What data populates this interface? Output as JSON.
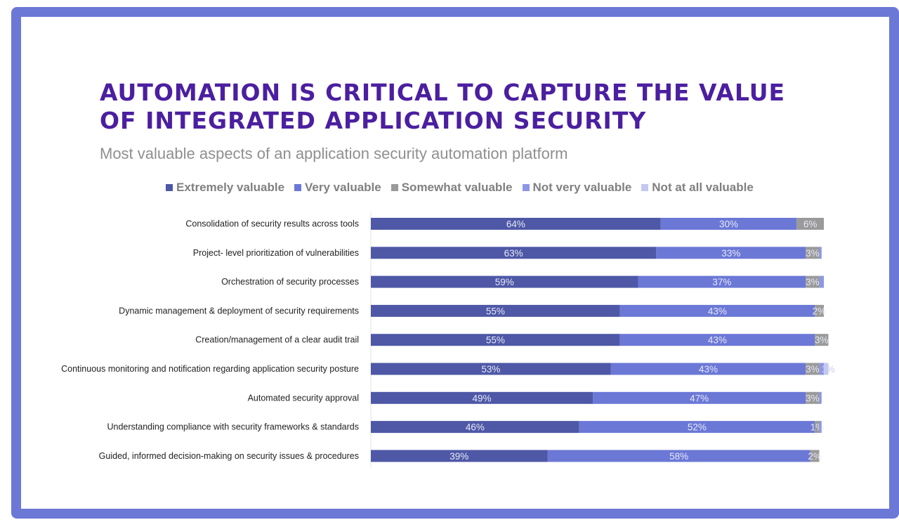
{
  "chart_data": {
    "type": "bar",
    "orientation": "horizontal-stacked",
    "title_lines": [
      "AUTOMATION IS CRITICAL TO CAPTURE THE VALUE",
      "OF INTEGRATED APPLICATION SECURITY"
    ],
    "subtitle": "Most valuable aspects of an application security automation platform",
    "legend_position": "top",
    "xlim": [
      0,
      100
    ],
    "categories": [
      "Consolidation of security results across tools",
      "Project- level prioritization of vulnerabilities",
      "Orchestration of security processes",
      "Dynamic management & deployment of security requirements",
      "Creation/management of a clear audit trail",
      "Continuous monitoring and notification regarding application security posture",
      "Automated security approval",
      "Understanding compliance with security frameworks & standards",
      "Guided, informed decision-making on security issues & procedures"
    ],
    "series": [
      {
        "name": "Extremely valuable",
        "color": "#4e58a6",
        "values": [
          64,
          63,
          59,
          55,
          55,
          53,
          49,
          46,
          39
        ],
        "labels": [
          "64%",
          "63%",
          "59%",
          "55%",
          "55%",
          "53%",
          "49%",
          "46%",
          "39%"
        ]
      },
      {
        "name": "Very valuable",
        "color": "#6b78d6",
        "values": [
          30,
          33,
          37,
          43,
          43,
          43,
          47,
          52,
          58
        ],
        "labels": [
          "30%",
          "33%",
          "37%",
          "43%",
          "43%",
          "43%",
          "47%",
          "52%",
          "58%"
        ]
      },
      {
        "name": "Somewhat valuable",
        "color": "#9a9a9a",
        "values": [
          6,
          3,
          3,
          2,
          3,
          3,
          3,
          1,
          2
        ],
        "labels": [
          "6%",
          "3%",
          "3%",
          "2%",
          "3%",
          "3%",
          "3%",
          "1%",
          "2%"
        ]
      },
      {
        "name": "Not very valuable",
        "color": "#8d97e3",
        "values": [
          0,
          0.5,
          1,
          0,
          0,
          1,
          0.5,
          0.5,
          0
        ],
        "labels": [
          "",
          "",
          "",
          "",
          "",
          "",
          "",
          "",
          ""
        ]
      },
      {
        "name": "Not at all valuable",
        "color": "#c3c8f0",
        "values": [
          0,
          0,
          0,
          0,
          0,
          1,
          0,
          0,
          0
        ],
        "labels": [
          "",
          "",
          "",
          "",
          "",
          "1%",
          "",
          "",
          ""
        ]
      }
    ]
  }
}
